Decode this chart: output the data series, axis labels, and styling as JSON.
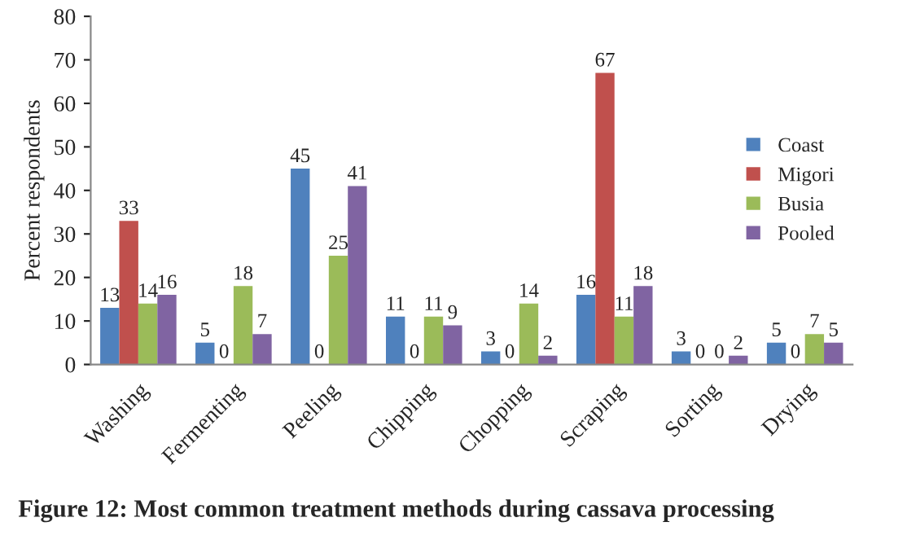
{
  "chart_data": {
    "type": "bar",
    "ylabel": "Percent respondents",
    "categories": [
      "Washing",
      "Fermenting",
      "Peeling",
      "Chipping",
      "Chopping",
      "Scraping",
      "Sorting",
      "Drying"
    ],
    "series": [
      {
        "name": "Coast",
        "color": "#4f81bd",
        "values": [
          13,
          5,
          45,
          11,
          3,
          16,
          3,
          5
        ]
      },
      {
        "name": "Migori",
        "color": "#c0504d",
        "values": [
          33,
          0,
          0,
          0,
          0,
          67,
          0,
          0
        ]
      },
      {
        "name": "Busia",
        "color": "#9bbb59",
        "values": [
          14,
          18,
          25,
          11,
          14,
          11,
          0,
          7
        ]
      },
      {
        "name": "Pooled",
        "color": "#8064a2",
        "values": [
          16,
          7,
          41,
          9,
          2,
          18,
          2,
          5
        ]
      }
    ],
    "ylim": [
      0,
      80
    ],
    "yticks": [
      0,
      10,
      20,
      30,
      40,
      50,
      60,
      70,
      80
    ],
    "grid": false,
    "legend": "right",
    "data_labels": true,
    "annotations": [
      "Figure 12: Most common treatment methods during cassava processing"
    ]
  }
}
